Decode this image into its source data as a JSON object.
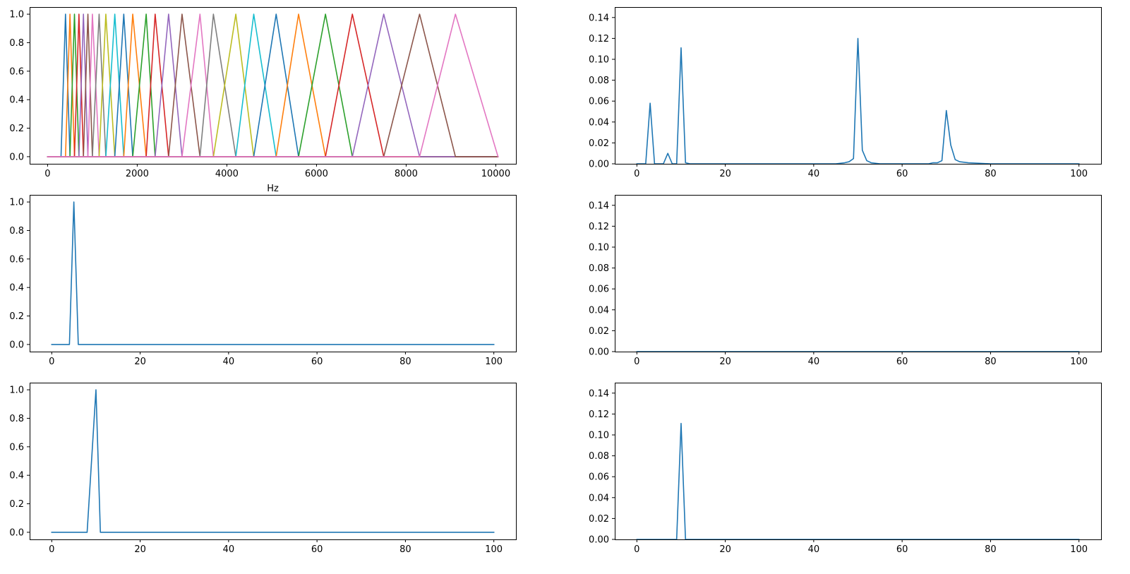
{
  "chart_data": [
    {
      "type": "line",
      "panel": "top-left",
      "title": "",
      "xlabel": "Hz",
      "ylabel": "",
      "xlim": [
        -400,
        10450
      ],
      "ylim": [
        -0.05,
        1.05
      ],
      "xticks": [
        0,
        2000,
        4000,
        6000,
        8000,
        10000
      ],
      "xtick_labels": [
        "0",
        "2000",
        "4000",
        "6000",
        "8000",
        "10000"
      ],
      "yticks": [
        0,
        0.2,
        0.4,
        0.6,
        0.8,
        1.0
      ],
      "ytick_labels": [
        "0.0",
        "0.2",
        "0.4",
        "0.6",
        "0.8",
        "1.0"
      ],
      "grid": false,
      "triangle_filter_bank": {
        "x_min": 0,
        "x_max": 10050,
        "band_edges_hz": [
          300,
          400,
          500,
          600,
          700,
          800,
          900,
          1000,
          1150,
          1300,
          1500,
          1700,
          1900,
          2200,
          2400,
          2700,
          3000,
          3400,
          3700,
          4200,
          4600,
          5100,
          5600,
          6200,
          6800,
          7500,
          8300,
          9100,
          10050
        ],
        "colors": [
          "#1f77b4",
          "#ff7f0e",
          "#2ca02c",
          "#d62728",
          "#9467bd",
          "#8c564b",
          "#e377c2",
          "#7f7f7f",
          "#bcbd22",
          "#17becf"
        ]
      }
    },
    {
      "type": "line",
      "panel": "top-right",
      "title": "",
      "xlabel": "",
      "ylabel": "",
      "xlim": [
        -5,
        105
      ],
      "ylim": [
        0,
        0.15
      ],
      "xticks": [
        0,
        20,
        40,
        60,
        80,
        100
      ],
      "xtick_labels": [
        "0",
        "20",
        "40",
        "60",
        "80",
        "100"
      ],
      "yticks": [
        0,
        0.02,
        0.04,
        0.06,
        0.08,
        0.1,
        0.12,
        0.14
      ],
      "ytick_labels": [
        "0.00",
        "0.02",
        "0.04",
        "0.06",
        "0.08",
        "0.10",
        "0.12",
        "0.14"
      ],
      "grid": false,
      "series": [
        {
          "color": "#1f77b4",
          "points": [
            [
              0,
              0
            ],
            [
              2,
              0
            ],
            [
              3,
              0.058
            ],
            [
              4,
              0
            ],
            [
              5,
              0
            ],
            [
              6,
              0
            ],
            [
              7,
              0.01
            ],
            [
              8,
              0
            ],
            [
              9,
              0
            ],
            [
              10,
              0.111
            ],
            [
              11,
              0.001
            ],
            [
              12,
              0
            ],
            [
              45,
              0
            ],
            [
              47,
              0.001
            ],
            [
              48,
              0.002
            ],
            [
              49,
              0.005
            ],
            [
              50,
              0.12
            ],
            [
              51,
              0.013
            ],
            [
              52,
              0.003
            ],
            [
              53,
              0.001
            ],
            [
              55,
              0
            ],
            [
              66,
              0
            ],
            [
              67,
              0.001
            ],
            [
              68,
              0.001
            ],
            [
              69,
              0.003
            ],
            [
              70,
              0.051
            ],
            [
              71,
              0.018
            ],
            [
              72,
              0.004
            ],
            [
              73,
              0.002
            ],
            [
              75,
              0.001
            ],
            [
              80,
              0
            ],
            [
              100,
              0
            ]
          ]
        }
      ]
    },
    {
      "type": "line",
      "panel": "middle-left",
      "title": "",
      "xlabel": "",
      "ylabel": "",
      "xlim": [
        -5,
        105
      ],
      "ylim": [
        -0.05,
        1.05
      ],
      "xticks": [
        0,
        20,
        40,
        60,
        80,
        100
      ],
      "xtick_labels": [
        "0",
        "20",
        "40",
        "60",
        "80",
        "100"
      ],
      "yticks": [
        0,
        0.2,
        0.4,
        0.6,
        0.8,
        1.0
      ],
      "ytick_labels": [
        "0.0",
        "0.2",
        "0.4",
        "0.6",
        "0.8",
        "1.0"
      ],
      "grid": false,
      "series": [
        {
          "color": "#1f77b4",
          "points": [
            [
              0,
              0
            ],
            [
              4,
              0
            ],
            [
              5,
              1.0
            ],
            [
              6,
              0
            ],
            [
              100,
              0
            ]
          ]
        }
      ]
    },
    {
      "type": "line",
      "panel": "middle-right",
      "title": "",
      "xlabel": "",
      "ylabel": "",
      "xlim": [
        -5,
        105
      ],
      "ylim": [
        0,
        0.15
      ],
      "xticks": [
        0,
        20,
        40,
        60,
        80,
        100
      ],
      "xtick_labels": [
        "0",
        "20",
        "40",
        "60",
        "80",
        "100"
      ],
      "yticks": [
        0,
        0.02,
        0.04,
        0.06,
        0.08,
        0.1,
        0.12,
        0.14
      ],
      "ytick_labels": [
        "0.00",
        "0.02",
        "0.04",
        "0.06",
        "0.08",
        "0.10",
        "0.12",
        "0.14"
      ],
      "grid": false,
      "series": [
        {
          "color": "#1f77b4",
          "points": [
            [
              0,
              0
            ],
            [
              100,
              0
            ]
          ]
        }
      ]
    },
    {
      "type": "line",
      "panel": "bottom-left",
      "title": "",
      "xlabel": "",
      "ylabel": "",
      "xlim": [
        -5,
        105
      ],
      "ylim": [
        -0.05,
        1.05
      ],
      "xticks": [
        0,
        20,
        40,
        60,
        80,
        100
      ],
      "xtick_labels": [
        "0",
        "20",
        "40",
        "60",
        "80",
        "100"
      ],
      "yticks": [
        0,
        0.2,
        0.4,
        0.6,
        0.8,
        1.0
      ],
      "ytick_labels": [
        "0.0",
        "0.2",
        "0.4",
        "0.6",
        "0.8",
        "1.0"
      ],
      "grid": false,
      "series": [
        {
          "color": "#1f77b4",
          "points": [
            [
              0,
              0
            ],
            [
              8,
              0
            ],
            [
              10,
              1.0
            ],
            [
              11,
              0
            ],
            [
              100,
              0
            ]
          ]
        }
      ]
    },
    {
      "type": "line",
      "panel": "bottom-right",
      "title": "",
      "xlabel": "",
      "ylabel": "",
      "xlim": [
        -5,
        105
      ],
      "ylim": [
        0,
        0.15
      ],
      "xticks": [
        0,
        20,
        40,
        60,
        80,
        100
      ],
      "xtick_labels": [
        "0",
        "20",
        "40",
        "60",
        "80",
        "100"
      ],
      "yticks": [
        0,
        0.02,
        0.04,
        0.06,
        0.08,
        0.1,
        0.12,
        0.14
      ],
      "ytick_labels": [
        "0.00",
        "0.02",
        "0.04",
        "0.06",
        "0.08",
        "0.10",
        "0.12",
        "0.14"
      ],
      "grid": false,
      "series": [
        {
          "color": "#1f77b4",
          "points": [
            [
              0,
              0
            ],
            [
              9,
              0
            ],
            [
              10,
              0.111
            ],
            [
              11,
              0
            ],
            [
              100,
              0
            ]
          ]
        }
      ]
    }
  ]
}
